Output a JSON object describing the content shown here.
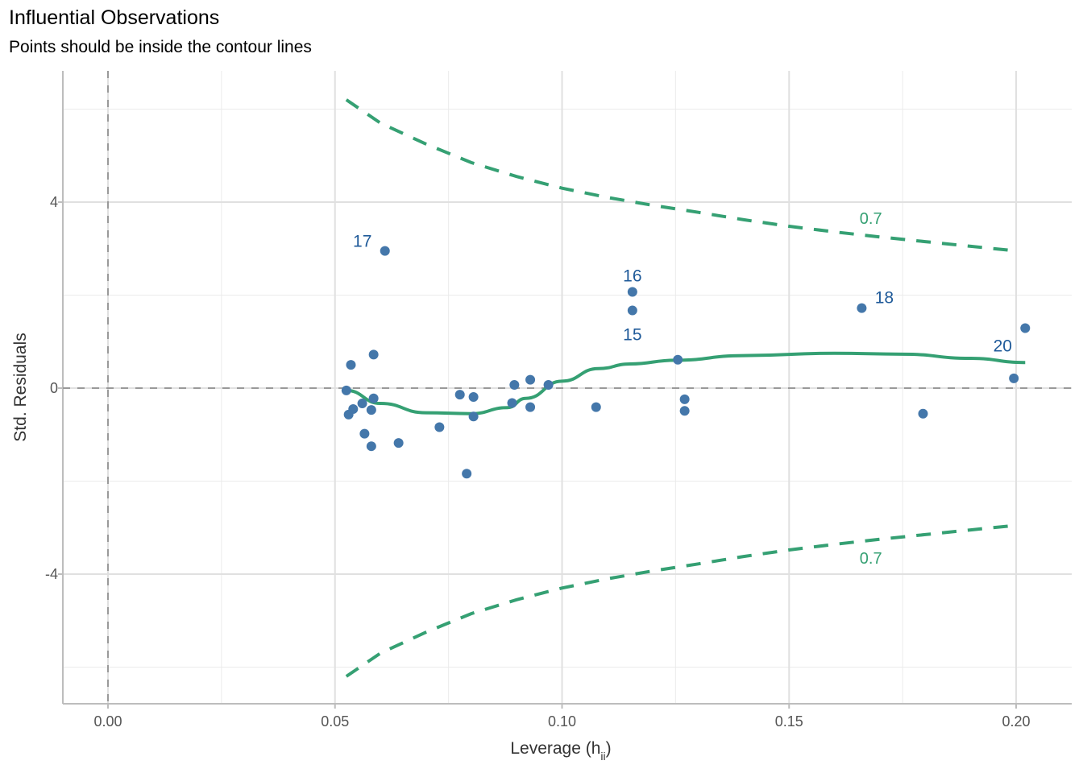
{
  "chart_data": {
    "type": "scatter",
    "title": "Influential Observations",
    "subtitle": "Points should be inside the contour lines",
    "xlabel_main": "Leverage (h",
    "xlabel_sub": "ii",
    "xlabel_close": ")",
    "ylabel": "Std. Residuals",
    "xlim": [
      -0.01,
      0.21
    ],
    "ylim": [
      -6.8,
      6.8
    ],
    "x_ticks": [
      0.0,
      0.05,
      0.1,
      0.15,
      0.2
    ],
    "x_tick_labels": [
      "0.00",
      "0.05",
      "0.10",
      "0.15",
      "0.20"
    ],
    "y_ticks": [
      -4,
      0,
      4
    ],
    "y_tick_labels": [
      "-4",
      "0",
      "4"
    ],
    "grid": true,
    "colors": {
      "points": "#4477aa",
      "labels": "#1f5a99",
      "smooth": "#35a073",
      "contour": "#35a073",
      "reference": "#999999"
    },
    "points": [
      {
        "x": 0.0525,
        "y": -0.05
      },
      {
        "x": 0.053,
        "y": -0.57
      },
      {
        "x": 0.0535,
        "y": 0.5
      },
      {
        "x": 0.054,
        "y": -0.45
      },
      {
        "x": 0.056,
        "y": -0.33
      },
      {
        "x": 0.0565,
        "y": -0.98
      },
      {
        "x": 0.058,
        "y": -0.47
      },
      {
        "x": 0.058,
        "y": -1.25
      },
      {
        "x": 0.0585,
        "y": 0.72
      },
      {
        "x": 0.0585,
        "y": -0.22
      },
      {
        "x": 0.061,
        "y": 2.95,
        "label": "17"
      },
      {
        "x": 0.064,
        "y": -1.18
      },
      {
        "x": 0.073,
        "y": -0.84
      },
      {
        "x": 0.0775,
        "y": -0.14
      },
      {
        "x": 0.079,
        "y": -1.84
      },
      {
        "x": 0.0805,
        "y": -0.19
      },
      {
        "x": 0.0805,
        "y": -0.61
      },
      {
        "x": 0.089,
        "y": -0.32
      },
      {
        "x": 0.0895,
        "y": 0.07
      },
      {
        "x": 0.093,
        "y": -0.41
      },
      {
        "x": 0.093,
        "y": 0.18
      },
      {
        "x": 0.097,
        "y": 0.07
      },
      {
        "x": 0.1075,
        "y": -0.41
      },
      {
        "x": 0.1155,
        "y": 2.07,
        "label": "16"
      },
      {
        "x": 0.1155,
        "y": 1.67,
        "label": "15"
      },
      {
        "x": 0.1255,
        "y": 0.61
      },
      {
        "x": 0.127,
        "y": -0.24
      },
      {
        "x": 0.127,
        "y": -0.49
      },
      {
        "x": 0.166,
        "y": 1.72,
        "label": "18"
      },
      {
        "x": 0.1795,
        "y": -0.55
      },
      {
        "x": 0.1995,
        "y": 0.21
      },
      {
        "x": 0.202,
        "y": 1.29,
        "label": "20"
      }
    ],
    "smooth_line": [
      {
        "x": 0.0525,
        "y": -0.05
      },
      {
        "x": 0.06,
        "y": -0.33
      },
      {
        "x": 0.07,
        "y": -0.53
      },
      {
        "x": 0.08,
        "y": -0.55
      },
      {
        "x": 0.088,
        "y": -0.42
      },
      {
        "x": 0.092,
        "y": -0.22
      },
      {
        "x": 0.1,
        "y": 0.15
      },
      {
        "x": 0.108,
        "y": 0.42
      },
      {
        "x": 0.115,
        "y": 0.52
      },
      {
        "x": 0.125,
        "y": 0.6
      },
      {
        "x": 0.14,
        "y": 0.7
      },
      {
        "x": 0.16,
        "y": 0.75
      },
      {
        "x": 0.175,
        "y": 0.73
      },
      {
        "x": 0.19,
        "y": 0.64
      },
      {
        "x": 0.202,
        "y": 0.55
      }
    ],
    "contours": [
      {
        "level_label": "0.7",
        "points": [
          {
            "x": 0.0525,
            "y": 6.2
          },
          {
            "x": 0.06,
            "y": 5.7
          },
          {
            "x": 0.07,
            "y": 5.25
          },
          {
            "x": 0.08,
            "y": 4.85
          },
          {
            "x": 0.09,
            "y": 4.55
          },
          {
            "x": 0.1,
            "y": 4.3
          },
          {
            "x": 0.11,
            "y": 4.1
          },
          {
            "x": 0.12,
            "y": 3.93
          },
          {
            "x": 0.13,
            "y": 3.78
          },
          {
            "x": 0.14,
            "y": 3.62
          },
          {
            "x": 0.15,
            "y": 3.48
          },
          {
            "x": 0.16,
            "y": 3.36
          },
          {
            "x": 0.17,
            "y": 3.25
          },
          {
            "x": 0.18,
            "y": 3.15
          },
          {
            "x": 0.19,
            "y": 3.05
          },
          {
            "x": 0.2,
            "y": 2.95
          }
        ],
        "label_at": {
          "x": 0.168,
          "y": 3.65
        }
      },
      {
        "level_label": "0.7",
        "points": [
          {
            "x": 0.0525,
            "y": -6.2
          },
          {
            "x": 0.06,
            "y": -5.7
          },
          {
            "x": 0.07,
            "y": -5.25
          },
          {
            "x": 0.08,
            "y": -4.85
          },
          {
            "x": 0.09,
            "y": -4.55
          },
          {
            "x": 0.1,
            "y": -4.3
          },
          {
            "x": 0.11,
            "y": -4.1
          },
          {
            "x": 0.12,
            "y": -3.93
          },
          {
            "x": 0.13,
            "y": -3.78
          },
          {
            "x": 0.14,
            "y": -3.62
          },
          {
            "x": 0.15,
            "y": -3.48
          },
          {
            "x": 0.16,
            "y": -3.36
          },
          {
            "x": 0.17,
            "y": -3.25
          },
          {
            "x": 0.18,
            "y": -3.15
          },
          {
            "x": 0.19,
            "y": -3.05
          },
          {
            "x": 0.2,
            "y": -2.95
          }
        ],
        "label_at": {
          "x": 0.168,
          "y": -3.65
        }
      }
    ],
    "reference_lines": {
      "x": 0,
      "y": 0
    }
  }
}
